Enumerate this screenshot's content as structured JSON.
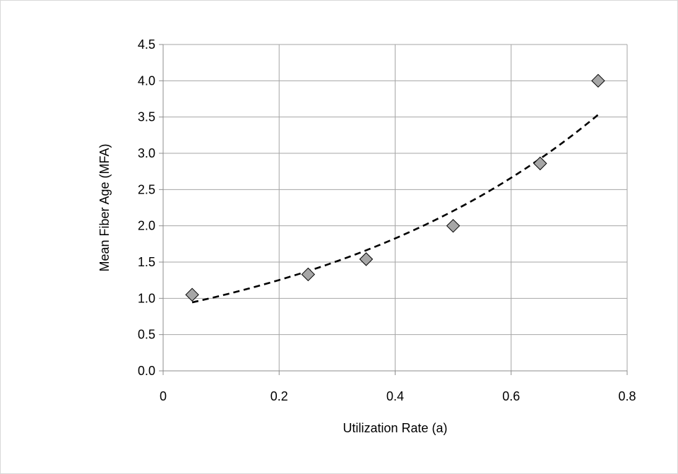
{
  "chart_data": {
    "type": "scatter",
    "title": "",
    "xlabel": "Utilization Rate (a)",
    "ylabel": "Mean Fiber Age (MFA)",
    "xlim": [
      0,
      0.8
    ],
    "ylim": [
      0,
      4.5
    ],
    "x_ticks": [
      {
        "value": 0,
        "label": "0"
      },
      {
        "value": 0.2,
        "label": "0.2"
      },
      {
        "value": 0.4,
        "label": "0.4"
      },
      {
        "value": 0.6,
        "label": "0.6"
      },
      {
        "value": 0.8,
        "label": "0.8"
      }
    ],
    "y_ticks": [
      {
        "value": 0,
        "label": "0.0"
      },
      {
        "value": 0.5,
        "label": "0.5"
      },
      {
        "value": 1.0,
        "label": "1.0"
      },
      {
        "value": 1.5,
        "label": "1.5"
      },
      {
        "value": 2.0,
        "label": "2.0"
      },
      {
        "value": 2.5,
        "label": "2.5"
      },
      {
        "value": 3.0,
        "label": "3.0"
      },
      {
        "value": 3.5,
        "label": "3.5"
      },
      {
        "value": 4.0,
        "label": "4.0"
      },
      {
        "value": 4.5,
        "label": "4.5"
      }
    ],
    "grid": true,
    "legend": "none",
    "series": [
      {
        "marker": "diamond",
        "marker_color": "#a6a6a6",
        "marker_edge_color": "#000000",
        "points": [
          {
            "x": 0.05,
            "y": 1.05
          },
          {
            "x": 0.25,
            "y": 1.33
          },
          {
            "x": 0.35,
            "y": 1.54
          },
          {
            "x": 0.5,
            "y": 2.0
          },
          {
            "x": 0.65,
            "y": 2.86
          },
          {
            "x": 0.75,
            "y": 4.0
          }
        ]
      }
    ],
    "trendline": {
      "style": "dashed",
      "color": "#000000",
      "x_range": [
        0.05,
        0.75
      ]
    }
  }
}
